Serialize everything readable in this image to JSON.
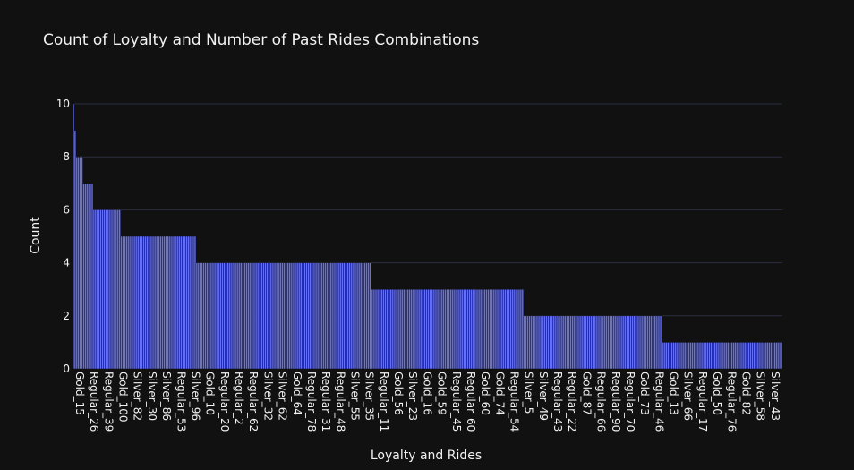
{
  "chart_data": {
    "type": "bar",
    "title": "Count of Loyalty and Number of Past Rides Combinations",
    "xlabel": "Loyalty and Rides",
    "ylabel": "Count",
    "ylim": [
      0,
      10
    ],
    "yticks": [
      0,
      2,
      4,
      6,
      8,
      10
    ],
    "grid": true,
    "legend": "none",
    "bar_color": "#636efa",
    "background": "#111111",
    "x_tick_labels": [
      "Gold_15",
      "Regular_26",
      "Regular_39",
      "Gold_100",
      "Silver_82",
      "Silver_30",
      "Silver_86",
      "Regular_53",
      "Silver_96",
      "Gold_10",
      "Regular_20",
      "Regular_2",
      "Regular_62",
      "Silver_32",
      "Silver_62",
      "Gold_64",
      "Regular_78",
      "Regular_31",
      "Regular_48",
      "Silver_55",
      "Silver_35",
      "Regular_11",
      "Gold_56",
      "Silver_23",
      "Gold_16",
      "Gold_59",
      "Regular_45",
      "Regular_60",
      "Gold_60",
      "Gold_74",
      "Regular_54",
      "Silver_5",
      "Silver_49",
      "Regular_43",
      "Regular_22",
      "Gold_87",
      "Regular_66",
      "Regular_90",
      "Regular_70",
      "Gold_73",
      "Regular_46",
      "Gold_13",
      "Silver_66",
      "Regular_17",
      "Gold_50",
      "Regular_76",
      "Gold_82",
      "Silver_58",
      "Silver_43"
    ],
    "values": [
      10,
      9,
      8,
      8,
      8,
      8,
      7,
      7,
      7,
      7,
      7,
      7,
      6,
      6,
      6,
      6,
      6,
      6,
      6,
      6,
      6,
      6,
      6,
      6,
      6,
      6,
      6,
      6,
      5,
      5,
      5,
      5,
      5,
      5,
      5,
      5,
      5,
      5,
      5,
      5,
      5,
      5,
      5,
      5,
      5,
      5,
      5,
      5,
      5,
      5,
      5,
      5,
      5,
      5,
      5,
      5,
      5,
      5,
      5,
      5,
      5,
      5,
      5,
      5,
      5,
      5,
      5,
      5,
      5,
      5,
      5,
      5,
      4,
      4,
      4,
      4,
      4,
      4,
      4,
      4,
      4,
      4,
      4,
      4,
      4,
      4,
      4,
      4,
      4,
      4,
      4,
      4,
      4,
      4,
      4,
      4,
      4,
      4,
      4,
      4,
      4,
      4,
      4,
      4,
      4,
      4,
      4,
      4,
      4,
      4,
      4,
      4,
      4,
      4,
      4,
      4,
      4,
      4,
      4,
      4,
      4,
      4,
      4,
      4,
      4,
      4,
      4,
      4,
      4,
      4,
      4,
      4,
      4,
      4,
      4,
      4,
      4,
      4,
      4,
      4,
      4,
      4,
      4,
      4,
      4,
      4,
      4,
      4,
      4,
      4,
      4,
      4,
      4,
      4,
      4,
      4,
      4,
      4,
      4,
      4,
      4,
      4,
      4,
      4,
      4,
      4,
      4,
      4,
      4,
      4,
      4,
      4,
      4,
      4,
      3,
      3,
      3,
      3,
      3,
      3,
      3,
      3,
      3,
      3,
      3,
      3,
      3,
      3,
      3,
      3,
      3,
      3,
      3,
      3,
      3,
      3,
      3,
      3,
      3,
      3,
      3,
      3,
      3,
      3,
      3,
      3,
      3,
      3,
      3,
      3,
      3,
      3,
      3,
      3,
      3,
      3,
      3,
      3,
      3,
      3,
      3,
      3,
      3,
      3,
      3,
      3,
      3,
      3,
      3,
      3,
      3,
      3,
      3,
      3,
      3,
      3,
      3,
      3,
      3,
      3,
      3,
      3,
      3,
      3,
      3,
      3,
      3,
      3,
      3,
      3,
      3,
      3,
      3,
      3,
      3,
      3,
      3,
      3,
      3,
      3,
      3,
      3,
      3,
      2,
      2,
      2,
      2,
      2,
      2,
      2,
      2,
      2,
      2,
      2,
      2,
      2,
      2,
      2,
      2,
      2,
      2,
      2,
      2,
      2,
      2,
      2,
      2,
      2,
      2,
      2,
      2,
      2,
      2,
      2,
      2,
      2,
      2,
      2,
      2,
      2,
      2,
      2,
      2,
      2,
      2,
      2,
      2,
      2,
      2,
      2,
      2,
      2,
      2,
      2,
      2,
      2,
      2,
      2,
      2,
      2,
      2,
      2,
      2,
      2,
      2,
      2,
      2,
      2,
      2,
      2,
      2,
      2,
      2,
      2,
      2,
      2,
      2,
      2,
      2,
      2,
      2,
      2,
      2,
      2,
      1,
      1,
      1,
      1,
      1,
      1,
      1,
      1,
      1,
      1,
      1,
      1,
      1,
      1,
      1,
      1,
      1,
      1,
      1,
      1,
      1,
      1,
      1,
      1,
      1,
      1,
      1,
      1,
      1,
      1,
      1,
      1,
      1,
      1,
      1,
      1,
      1,
      1,
      1,
      1,
      1,
      1,
      1,
      1,
      1,
      1,
      1,
      1,
      1,
      1,
      1,
      1,
      1,
      1,
      1,
      1,
      1,
      1,
      1,
      1,
      1,
      1,
      1,
      1,
      1,
      1,
      1,
      1,
      1,
      1
    ]
  }
}
